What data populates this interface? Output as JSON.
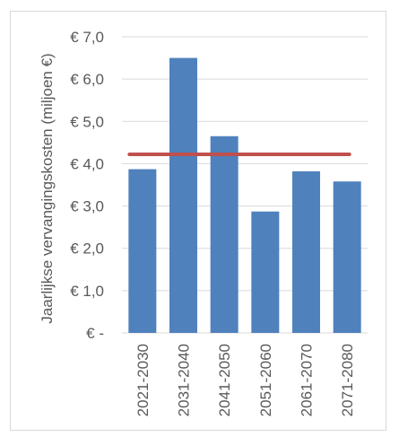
{
  "chart_data": {
    "type": "bar",
    "title": "",
    "xlabel": "",
    "ylabel": "Jaarlijkse vervangingskosten (miljoen €)",
    "categories": [
      "2021-2030",
      "2031-2040",
      "2041-2050",
      "2051-2060",
      "2061-2070",
      "2071-2080"
    ],
    "series": [
      {
        "values": [
          3.87,
          6.5,
          4.65,
          2.87,
          3.82,
          3.58
        ]
      }
    ],
    "reference_line": {
      "value": 4.22
    },
    "ylim": [
      0,
      7
    ],
    "y_ticks": [
      {
        "value": 0,
        "label": "€ -"
      },
      {
        "value": 1,
        "label": "€ 1,0"
      },
      {
        "value": 2,
        "label": "€ 2,0"
      },
      {
        "value": 3,
        "label": "€ 3,0"
      },
      {
        "value": 4,
        "label": "€ 4,0"
      },
      {
        "value": 5,
        "label": "€ 5,0"
      },
      {
        "value": 6,
        "label": "€ 6,0"
      },
      {
        "value": 7,
        "label": "€ 7,0"
      }
    ],
    "grid": true,
    "legend": "none",
    "colors": {
      "bar": "#4f81bd",
      "reference_line": "#c0504d",
      "grid": "#d9d9d9"
    }
  }
}
